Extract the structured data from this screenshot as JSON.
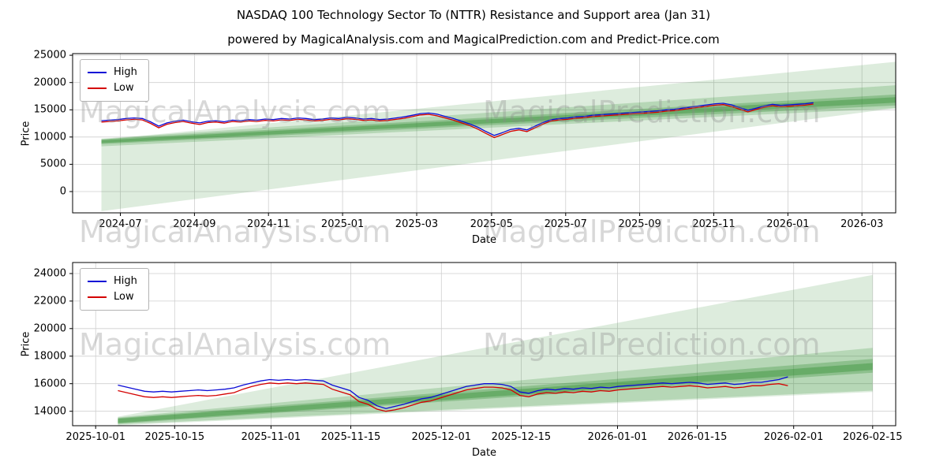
{
  "figure": {
    "title": "NASDAQ 100 Technology Sector To (NTTR) Resistance and Support area (Jan 31)",
    "subtitle": "powered by MagicalAnalysis.com and MagicalPrediction.com and Predict-Price.com",
    "watermark_left": "MagicalAnalysis.com",
    "watermark_right": "MagicalPrediction.com",
    "colors": {
      "high": "#0b0bd6",
      "low": "#d40000",
      "band": "#2e8b2e",
      "grid": "#cfcfcf"
    }
  },
  "chart_data": [
    {
      "type": "line",
      "xlabel": "Date",
      "ylabel": "Price",
      "grid": true,
      "legend_position": "upper-left",
      "legend": [
        "High",
        "Low"
      ],
      "ylim": [
        -3900,
        25300
      ],
      "yticks": [
        0,
        5000,
        10000,
        15000,
        20000,
        25000
      ],
      "xticks": [
        {
          "pos": 0.058,
          "label": "2024-07"
        },
        {
          "pos": 0.148,
          "label": "2024-09"
        },
        {
          "pos": 0.238,
          "label": "2024-11"
        },
        {
          "pos": 0.328,
          "label": "2025-01"
        },
        {
          "pos": 0.418,
          "label": "2025-03"
        },
        {
          "pos": 0.509,
          "label": "2025-05"
        },
        {
          "pos": 0.599,
          "label": "2025-07"
        },
        {
          "pos": 0.689,
          "label": "2025-09"
        },
        {
          "pos": 0.779,
          "label": "2025-11"
        },
        {
          "pos": 0.869,
          "label": "2026-01"
        },
        {
          "pos": 0.959,
          "label": "2026-03"
        }
      ],
      "x_start": 0.035,
      "x_end": 0.9,
      "series": [
        {
          "name": "High",
          "color": "#0b0bd6",
          "values": [
            13000,
            13100,
            13200,
            13400,
            13500,
            13400,
            12800,
            12000,
            12600,
            12900,
            13100,
            12800,
            12600,
            12900,
            13000,
            12800,
            13100,
            13000,
            13200,
            13100,
            13300,
            13200,
            13400,
            13300,
            13500,
            13400,
            13200,
            13300,
            13500,
            13400,
            13600,
            13500,
            13300,
            13400,
            13200,
            13300,
            13500,
            13700,
            14000,
            14300,
            14400,
            14200,
            13800,
            13400,
            12900,
            12400,
            11800,
            11000,
            10300,
            10800,
            11400,
            11600,
            11300,
            12000,
            12700,
            13200,
            13400,
            13500,
            13700,
            13800,
            14000,
            14100,
            14200,
            14300,
            14400,
            14500,
            14600,
            14700,
            14800,
            15000,
            15100,
            15300,
            15500,
            15700,
            15900,
            16100,
            16200,
            15900,
            15400,
            14900,
            15300,
            15700,
            16000,
            15800,
            15900,
            16000,
            16100,
            16300
          ]
        },
        {
          "name": "Low",
          "color": "#d40000",
          "values": [
            12750,
            12850,
            12950,
            13150,
            13250,
            13150,
            12500,
            11700,
            12350,
            12650,
            12850,
            12550,
            12300,
            12650,
            12750,
            12550,
            12850,
            12750,
            12950,
            12850,
            13050,
            12950,
            13150,
            13050,
            13250,
            13150,
            12950,
            13050,
            13250,
            13150,
            13350,
            13250,
            13050,
            13150,
            12950,
            13050,
            13250,
            13450,
            13750,
            14050,
            14150,
            13900,
            13500,
            13100,
            12600,
            12100,
            11450,
            10650,
            9900,
            10450,
            11050,
            11300,
            11000,
            11700,
            12400,
            12950,
            13150,
            13250,
            13450,
            13550,
            13750,
            13850,
            13950,
            14050,
            14150,
            14250,
            14350,
            14450,
            14550,
            14750,
            14850,
            15050,
            15250,
            15450,
            15650,
            15850,
            15950,
            15600,
            15100,
            14600,
            15050,
            15450,
            15750,
            15550,
            15650,
            15750,
            15850,
            16050
          ]
        }
      ],
      "bands": [
        {
          "x0": 0.035,
          "x1": 1.0,
          "yl": [
            -3600,
            9500
          ],
          "yr": [
            15300,
            23800
          ],
          "opacity": 0.16
        },
        {
          "x0": 0.035,
          "x1": 1.0,
          "yl": [
            8300,
            9700
          ],
          "yr": [
            15300,
            19500
          ],
          "opacity": 0.22
        },
        {
          "x0": 0.035,
          "x1": 1.0,
          "yl": [
            8700,
            9600
          ],
          "yr": [
            15800,
            17800
          ],
          "opacity": 0.3
        },
        {
          "x0": 0.035,
          "x1": 1.0,
          "yl": [
            8900,
            9400
          ],
          "yr": [
            16300,
            17300
          ],
          "opacity": 0.38
        }
      ]
    },
    {
      "type": "line",
      "xlabel": "Date",
      "ylabel": "Price",
      "grid": true,
      "legend_position": "upper-left",
      "legend": [
        "High",
        "Low"
      ],
      "ylim": [
        12950,
        24800
      ],
      "yticks": [
        14000,
        16000,
        18000,
        20000,
        22000,
        24000
      ],
      "xticks": [
        {
          "pos": 0.028,
          "label": "2025-10-01"
        },
        {
          "pos": 0.124,
          "label": "2025-10-15"
        },
        {
          "pos": 0.241,
          "label": "2025-11-01"
        },
        {
          "pos": 0.338,
          "label": "2025-11-15"
        },
        {
          "pos": 0.448,
          "label": "2025-12-01"
        },
        {
          "pos": 0.545,
          "label": "2025-12-15"
        },
        {
          "pos": 0.662,
          "label": "2026-01-01"
        },
        {
          "pos": 0.759,
          "label": "2026-01-15"
        },
        {
          "pos": 0.876,
          "label": "2026-02-01"
        },
        {
          "pos": 0.972,
          "label": "2026-02-15"
        }
      ],
      "x_start": 0.055,
      "x_end": 0.869,
      "series": [
        {
          "name": "High",
          "color": "#0b0bd6",
          "values": [
            15900,
            15750,
            15600,
            15450,
            15400,
            15450,
            15400,
            15450,
            15500,
            15550,
            15500,
            15550,
            15600,
            15700,
            15900,
            16050,
            16200,
            16300,
            16250,
            16300,
            16250,
            16300,
            16250,
            16200,
            15900,
            15700,
            15500,
            15000,
            14800,
            14400,
            14200,
            14350,
            14500,
            14700,
            14900,
            15000,
            15200,
            15400,
            15600,
            15800,
            15900,
            16000,
            16000,
            15950,
            15800,
            15400,
            15300,
            15500,
            15600,
            15550,
            15650,
            15600,
            15700,
            15650,
            15750,
            15700,
            15800,
            15850,
            15900,
            15950,
            16000,
            16050,
            16000,
            16050,
            16100,
            16050,
            15950,
            16000,
            16050,
            15950,
            16000,
            16100,
            16100,
            16200,
            16300,
            16500
          ]
        },
        {
          "name": "Low",
          "color": "#d40000",
          "values": [
            15500,
            15350,
            15200,
            15050,
            15000,
            15050,
            15000,
            15050,
            15100,
            15150,
            15100,
            15150,
            15250,
            15350,
            15600,
            15800,
            15950,
            16050,
            16000,
            16050,
            16000,
            16050,
            16000,
            15950,
            15600,
            15400,
            15200,
            14700,
            14500,
            14150,
            14000,
            14100,
            14250,
            14450,
            14650,
            14750,
            14950,
            15150,
            15350,
            15550,
            15650,
            15750,
            15750,
            15700,
            15550,
            15150,
            15050,
            15250,
            15350,
            15300,
            15400,
            15350,
            15450,
            15400,
            15500,
            15450,
            15550,
            15600,
            15650,
            15700,
            15750,
            15800,
            15750,
            15800,
            15850,
            15800,
            15700,
            15750,
            15800,
            15700,
            15750,
            15850,
            15850,
            15950,
            16000,
            15850
          ]
        }
      ],
      "bands": [
        {
          "x0": 0.055,
          "x1": 0.972,
          "yl": [
            12980,
            13600
          ],
          "yr": [
            15400,
            23900
          ],
          "opacity": 0.16
        },
        {
          "x0": 0.055,
          "x1": 0.972,
          "yl": [
            13050,
            13550
          ],
          "yr": [
            15500,
            18600
          ],
          "opacity": 0.22
        },
        {
          "x0": 0.055,
          "x1": 0.972,
          "yl": [
            13100,
            13500
          ],
          "yr": [
            16800,
            17800
          ],
          "opacity": 0.3
        },
        {
          "x0": 0.055,
          "x1": 0.972,
          "yl": [
            13150,
            13450
          ],
          "yr": [
            17000,
            17500
          ],
          "opacity": 0.38
        }
      ]
    }
  ]
}
